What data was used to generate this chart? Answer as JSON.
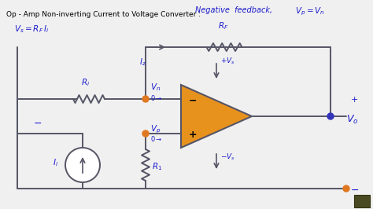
{
  "bg_color": "#f0f0f0",
  "wire_color": "#555566",
  "op_amp_color": "#e8921e",
  "op_amp_edge": "#555566",
  "node_color_orange": "#e07820",
  "node_color_blue": "#3333bb",
  "text_color": "#1a1acc",
  "title": "Op - Amp Non-inverting Current to Voltage Converter :",
  "subtitle_neg_feedback": "Negative  feedback,",
  "subtitle_vp_vn": "V_p = V_n",
  "label_RF": "R_F",
  "label_R1": "R_1",
  "label_Ri": "R_i",
  "label_Vn": "V_n",
  "label_Vp": "V_p",
  "label_Ii": "I_i",
  "label_Iz": "I_z",
  "label_Vs_pos": "+V_s",
  "label_Vs_neg": "-V_s",
  "label_Vo": "V_o"
}
